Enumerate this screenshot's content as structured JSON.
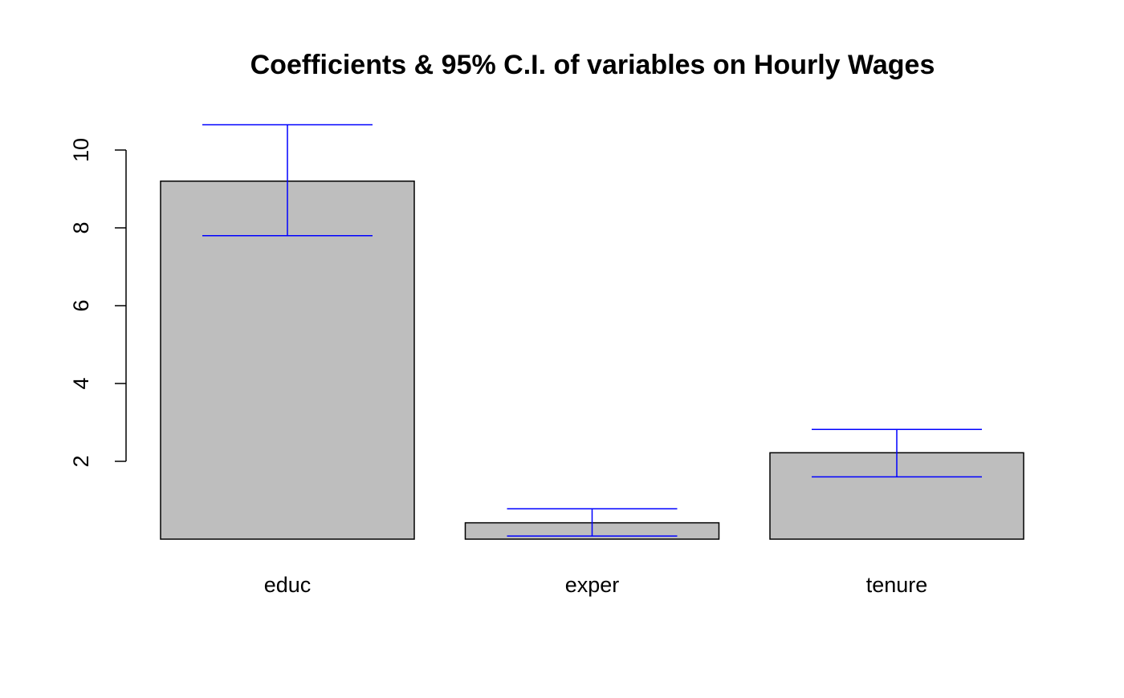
{
  "chart_data": {
    "type": "bar",
    "title": "Coefficients & 95% C.I. of variables on Hourly Wages",
    "xlabel": "",
    "ylabel": "",
    "categories": [
      "educ",
      "exper",
      "tenure"
    ],
    "values": [
      9.2,
      0.42,
      2.22
    ],
    "ci_lower": [
      7.8,
      0.08,
      1.6
    ],
    "ci_upper": [
      10.65,
      0.78,
      2.82
    ],
    "yticks": [
      2,
      4,
      6,
      8,
      10
    ],
    "ylim": [
      0,
      10.65
    ],
    "bar_color": "#bebebe",
    "bar_border_color": "#000000",
    "errorbar_color": "#0000ff",
    "grid": false,
    "legend": "none"
  }
}
